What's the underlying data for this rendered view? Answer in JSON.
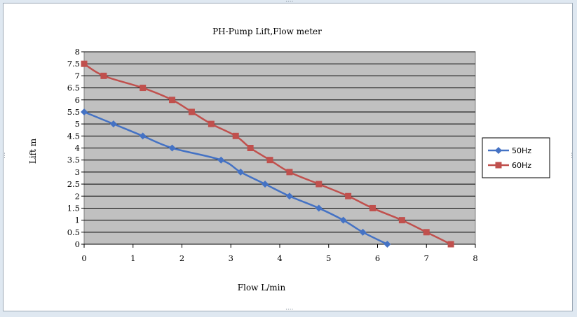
{
  "chart_data": {
    "type": "line",
    "title": "PH-Pump Lift,Flow meter",
    "xlabel": "Flow L/min",
    "ylabel": "Lift m",
    "xlim": [
      0,
      8
    ],
    "ylim": [
      0,
      8
    ],
    "xticks": [
      0,
      1,
      2,
      3,
      4,
      5,
      6,
      7,
      8
    ],
    "yticks": [
      0,
      0.5,
      1,
      1.5,
      2,
      2.5,
      3,
      3.5,
      4,
      4.5,
      5,
      5.5,
      6,
      6.5,
      7,
      7.5,
      8
    ],
    "grid": true,
    "legend_position": "right",
    "series": [
      {
        "name": "50Hz",
        "color": "#4472c4",
        "marker": "diamond",
        "points": [
          [
            0,
            5.5
          ],
          [
            0.6,
            5
          ],
          [
            1.2,
            4.5
          ],
          [
            1.8,
            4
          ],
          [
            2.8,
            3.5
          ],
          [
            3.2,
            3
          ],
          [
            3.7,
            2.5
          ],
          [
            4.2,
            2
          ],
          [
            4.8,
            1.5
          ],
          [
            5.3,
            1
          ],
          [
            5.7,
            0.5
          ],
          [
            6.2,
            0
          ]
        ]
      },
      {
        "name": "60Hz",
        "color": "#c0504d",
        "marker": "square",
        "points": [
          [
            0,
            7.5
          ],
          [
            0.4,
            7
          ],
          [
            1.2,
            6.5
          ],
          [
            1.8,
            6
          ],
          [
            2.2,
            5.5
          ],
          [
            2.6,
            5
          ],
          [
            3.1,
            4.5
          ],
          [
            3.4,
            4
          ],
          [
            3.8,
            3.5
          ],
          [
            4.2,
            3
          ],
          [
            4.8,
            2.5
          ],
          [
            5.4,
            2
          ],
          [
            5.9,
            1.5
          ],
          [
            6.5,
            1
          ],
          [
            7,
            0.5
          ],
          [
            7.5,
            0
          ]
        ]
      }
    ]
  }
}
